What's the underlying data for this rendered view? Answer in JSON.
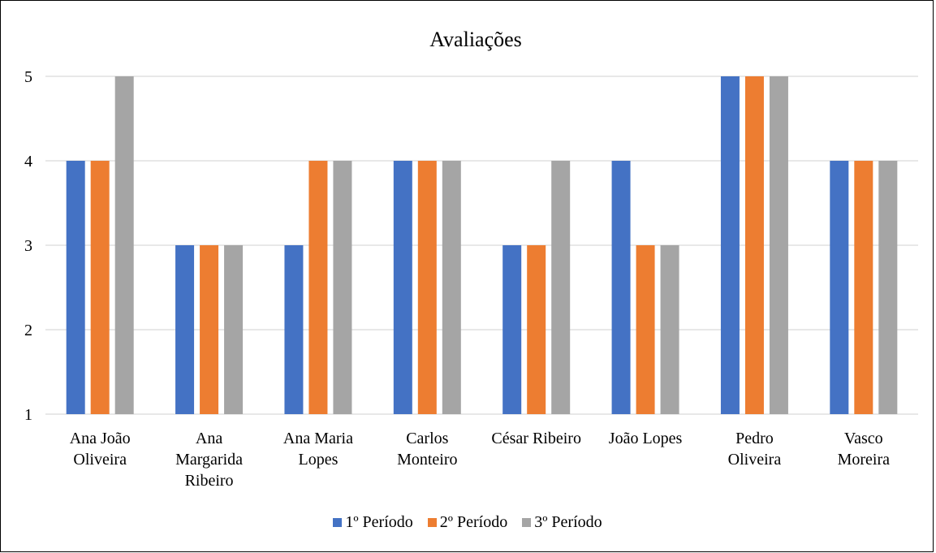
{
  "chart_data": {
    "type": "bar",
    "title": "Avaliações",
    "categories": [
      [
        "Ana João",
        "Oliveira"
      ],
      [
        "Ana",
        "Margarida",
        "Ribeiro"
      ],
      [
        "Ana Maria",
        "Lopes"
      ],
      [
        "Carlos",
        "Monteiro"
      ],
      [
        "César Ribeiro"
      ],
      [
        "João Lopes"
      ],
      [
        "Pedro",
        "Oliveira"
      ],
      [
        "Vasco",
        "Moreira"
      ]
    ],
    "series": [
      {
        "name": "1º Período",
        "color": "#4472C4",
        "values": [
          4,
          3,
          3,
          4,
          3,
          4,
          5,
          4
        ]
      },
      {
        "name": "2º Período",
        "color": "#ED7D31",
        "values": [
          4,
          3,
          4,
          4,
          3,
          3,
          5,
          4
        ]
      },
      {
        "name": "3º Período",
        "color": "#A5A5A5",
        "values": [
          5,
          3,
          4,
          4,
          4,
          3,
          5,
          4
        ]
      }
    ],
    "ylim": [
      1,
      5
    ],
    "yticks": [
      "1",
      "2",
      "3",
      "4",
      "5"
    ],
    "grid": true,
    "legend_position": "bottom"
  }
}
